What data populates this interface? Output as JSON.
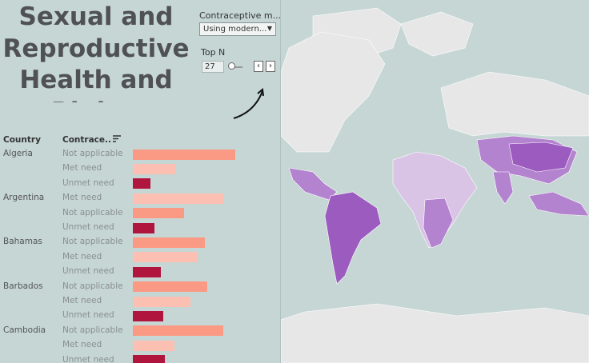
{
  "title": "Sexual and Reproductive Health and Rights",
  "filter": {
    "label": "Contraceptive m...",
    "value": "Using modern..."
  },
  "topn": {
    "label": "Top N",
    "value": "27",
    "level": 0.0
  },
  "columns": {
    "country": "Country",
    "contraceptive": "Contrace.."
  },
  "colors": {
    "not_applicable": "#fb9a84",
    "met_need": "#fcc0b2",
    "unmet_need": "#b0153e",
    "map_bg": "#c5d6d4",
    "land": "#e6e7e6",
    "purple_dark": "#9c5bbf",
    "purple_mid": "#b483cf",
    "purple_light": "#dac4e6"
  },
  "rows": [
    {
      "country": "Algeria",
      "type": "Not applicable",
      "key": "not_applicable",
      "value": 1.0
    },
    {
      "country": "",
      "type": "Met need",
      "key": "met_need",
      "value": 0.42
    },
    {
      "country": "",
      "type": "Unmet need",
      "key": "unmet_need",
      "value": 0.17
    },
    {
      "country": "Argentina",
      "type": "Met need",
      "key": "met_need",
      "value": 0.89
    },
    {
      "country": "",
      "type": "Not applicable",
      "key": "not_applicable",
      "value": 0.5
    },
    {
      "country": "",
      "type": "Unmet need",
      "key": "unmet_need",
      "value": 0.21
    },
    {
      "country": "Bahamas",
      "type": "Not applicable",
      "key": "not_applicable",
      "value": 0.7
    },
    {
      "country": "",
      "type": "Met need",
      "key": "met_need",
      "value": 0.63
    },
    {
      "country": "",
      "type": "Unmet need",
      "key": "unmet_need",
      "value": 0.27
    },
    {
      "country": "Barbados",
      "type": "Not applicable",
      "key": "not_applicable",
      "value": 0.73
    },
    {
      "country": "",
      "type": "Met need",
      "key": "met_need",
      "value": 0.56
    },
    {
      "country": "",
      "type": "Unmet need",
      "key": "unmet_need",
      "value": 0.3
    },
    {
      "country": "Cambodia",
      "type": "Not applicable",
      "key": "not_applicable",
      "value": 0.88
    },
    {
      "country": "",
      "type": "Met need",
      "key": "met_need",
      "value": 0.41
    },
    {
      "country": "",
      "type": "Unmet need",
      "key": "unmet_need",
      "value": 0.31
    }
  ]
}
